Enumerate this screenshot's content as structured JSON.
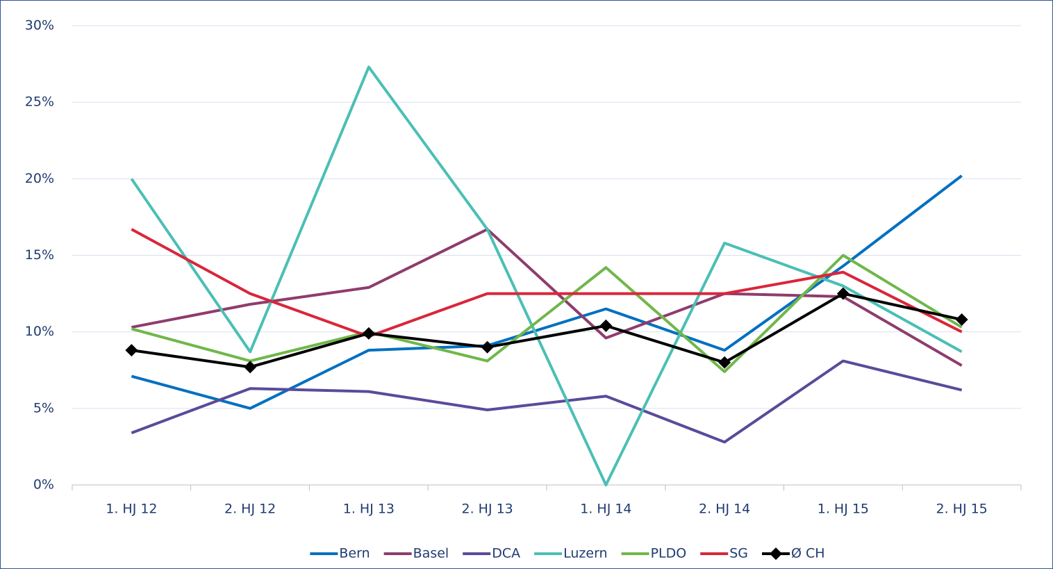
{
  "chart_data": {
    "type": "line",
    "categories": [
      "1. HJ 12",
      "2. HJ 12",
      "1. HJ 13",
      "2. HJ 13",
      "1. HJ 14",
      "2. HJ 14",
      "1. HJ 15",
      "2. HJ 15"
    ],
    "series": [
      {
        "name": "Bern",
        "color": "#0070c0",
        "values": [
          7.1,
          5.0,
          8.8,
          9.1,
          11.5,
          8.8,
          14.3,
          20.2
        ]
      },
      {
        "name": "Basel",
        "color": "#8e3c6d",
        "values": [
          10.3,
          11.8,
          12.9,
          16.7,
          9.6,
          12.5,
          12.3,
          7.8
        ]
      },
      {
        "name": "DCA",
        "color": "#5b4a9a",
        "values": [
          3.4,
          6.3,
          6.1,
          4.9,
          5.8,
          2.8,
          8.1,
          6.2
        ]
      },
      {
        "name": "Luzern",
        "color": "#4bbfb5",
        "values": [
          20.0,
          8.7,
          27.3,
          16.7,
          0,
          15.8,
          13.0,
          8.7
        ]
      },
      {
        "name": "PLDO",
        "color": "#70b74a",
        "values": [
          10.2,
          8.1,
          10.0,
          8.1,
          14.2,
          7.4,
          15.0,
          10.3
        ]
      },
      {
        "name": "SG",
        "color": "#d9263a",
        "values": [
          16.7,
          12.5,
          9.7,
          12.5,
          12.5,
          12.5,
          13.9,
          10.0
        ]
      },
      {
        "name": "Ø CH",
        "color": "#000000",
        "marker": "diamond",
        "values": [
          8.8,
          7.7,
          9.9,
          9.0,
          10.4,
          8.0,
          12.5,
          10.8
        ]
      }
    ],
    "ylim": [
      0,
      30
    ],
    "yticks": [
      {
        "value": 0,
        "label": "0%"
      },
      {
        "value": 5,
        "label": "5%"
      },
      {
        "value": 10,
        "label": "10%"
      },
      {
        "value": 15,
        "label": "15%"
      },
      {
        "value": 20,
        "label": "20%"
      },
      {
        "value": 25,
        "label": "25%"
      },
      {
        "value": 30,
        "label": "30%"
      }
    ],
    "grid": true,
    "legend": "bottom"
  }
}
